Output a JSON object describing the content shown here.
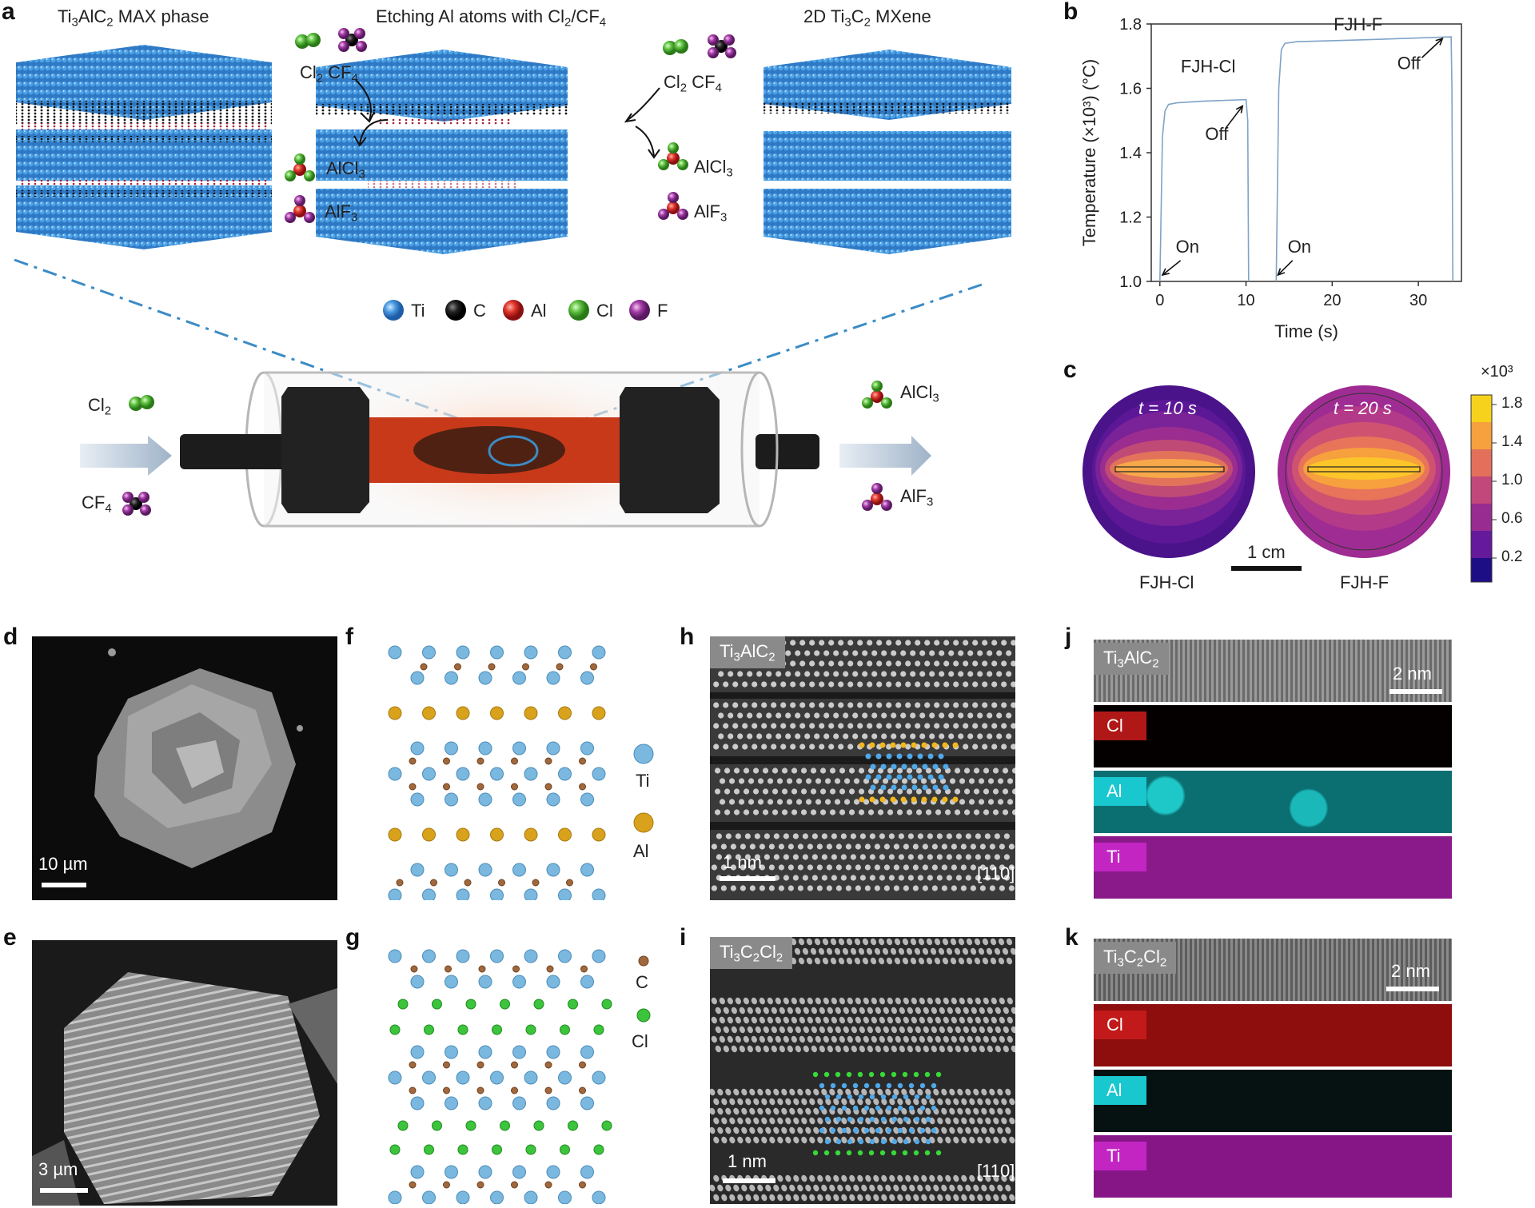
{
  "panels": {
    "a": {
      "label": "a",
      "title_max": "Ti3AlC2 MAX phase",
      "title_etch": "Etching Al atoms with Cl2/CF4",
      "title_mxene": "2D Ti3C2 MXene",
      "reactants_left": "Cl2 CF4",
      "reactants_right": "Cl2 CF4",
      "product_alcl3": "AlCl3",
      "product_alf3": "AlF3",
      "legend": [
        "Ti",
        "C",
        "Al",
        "Cl",
        "F"
      ],
      "inlet_cl2": "Cl2",
      "inlet_cf4": "CF4",
      "outlet_alcl3": "AlCl3",
      "outlet_alf3": "AlF3"
    },
    "b": {
      "label": "b"
    },
    "c": {
      "label": "c",
      "t1": "t = 10 s",
      "t2": "t = 20 s",
      "scale": "1 cm",
      "name1": "FJH-Cl",
      "name2": "FJH-F",
      "colorbar_exponent": "×10³",
      "colorbar_ticks": [
        "1.8",
        "1.4",
        "1.0",
        "0.6",
        "0.2"
      ]
    },
    "d": {
      "label": "d",
      "scale": "10 µm"
    },
    "e": {
      "label": "e",
      "scale": "3 µm"
    },
    "f": {
      "label": "f",
      "legend_ti": "Ti",
      "legend_al": "Al"
    },
    "g": {
      "label": "g",
      "legend_c": "C",
      "legend_cl": "Cl"
    },
    "h": {
      "label": "h",
      "tag": "Ti3AlC2",
      "scale": "1 nm",
      "zone": "[110]"
    },
    "i": {
      "label": "i",
      "tag": "Ti3C2Cl2",
      "scale": "1 nm",
      "zone": "[110]"
    },
    "j": {
      "label": "j",
      "tag": "Ti3AlC2",
      "scale": "2 nm",
      "maps": [
        "Cl",
        "Al",
        "Ti"
      ]
    },
    "k": {
      "label": "k",
      "tag": "Ti3C2Cl2",
      "scale": "2 nm",
      "maps": [
        "Cl",
        "Al",
        "Ti"
      ]
    }
  },
  "chart_data": {
    "type": "line",
    "xlabel": "Time (s)",
    "ylabel": "Temperature (×10³) (°C)",
    "xlim": [
      -1,
      35
    ],
    "ylim": [
      1.0,
      1.8
    ],
    "xticks": [
      0,
      10,
      20,
      30
    ],
    "yticks": [
      "1.0",
      "1.2",
      "1.4",
      "1.6",
      "1.8"
    ],
    "series": [
      {
        "name": "FJH-Cl",
        "x": [
          0,
          0.3,
          0.6,
          1,
          2,
          5,
          10,
          10.2,
          10.3
        ],
        "y": [
          1.0,
          1.45,
          1.53,
          1.55,
          1.555,
          1.56,
          1.565,
          1.5,
          1.0
        ]
      },
      {
        "name": "FJH-F",
        "x": [
          13.5,
          13.8,
          14.1,
          14.5,
          16,
          20,
          25,
          33.8,
          33.9,
          34.0
        ],
        "y": [
          1.0,
          1.6,
          1.72,
          1.74,
          1.745,
          1.748,
          1.752,
          1.76,
          1.6,
          1.0
        ]
      }
    ],
    "annotations": [
      "On",
      "Off",
      "On",
      "Off"
    ],
    "color": "#7fa3c8",
    "grid": false
  }
}
